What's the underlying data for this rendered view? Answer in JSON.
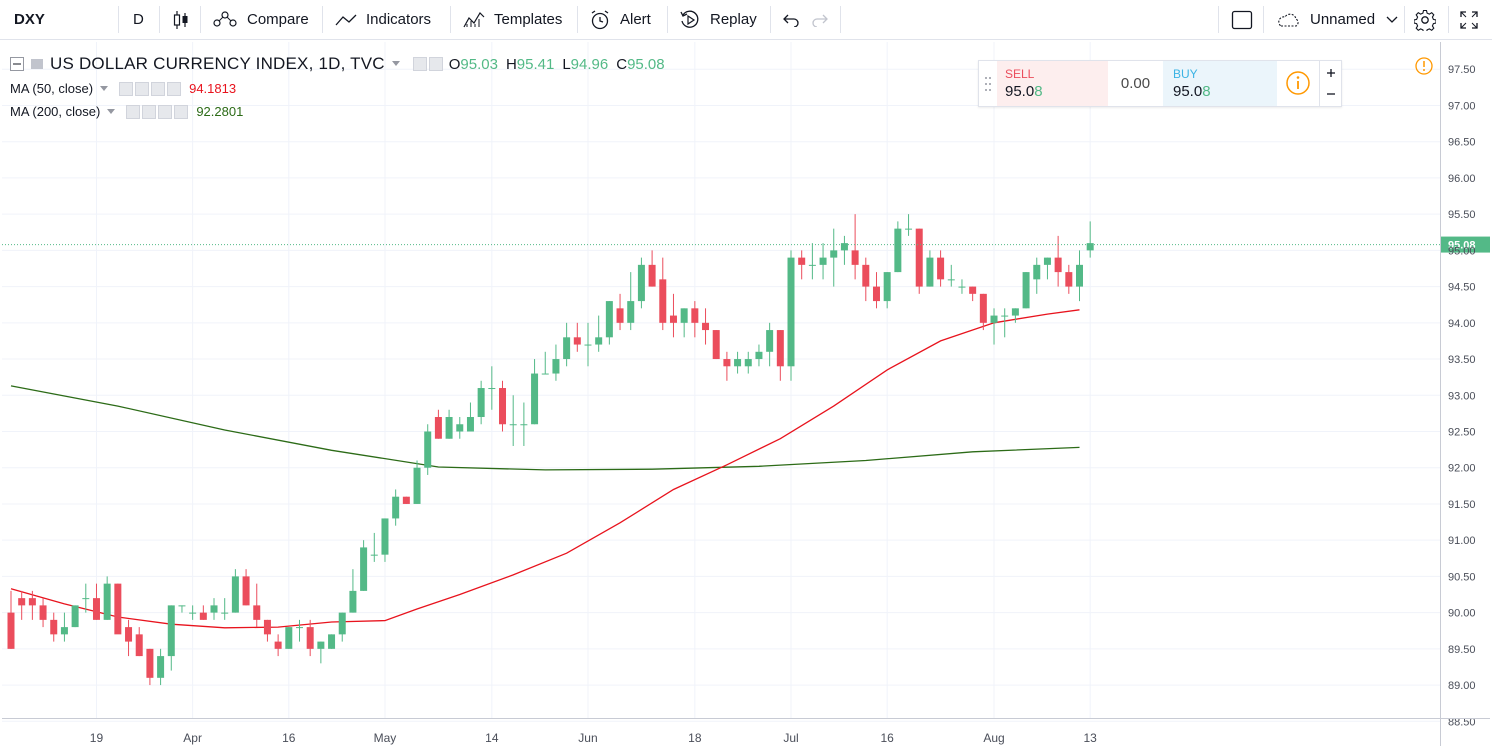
{
  "toolbar": {
    "symbol": "DXY",
    "interval": "D",
    "compare": "Compare",
    "indicators": "Indicators",
    "templates": "Templates",
    "alert": "Alert",
    "replay": "Replay",
    "layout_name": "Unnamed"
  },
  "legend": {
    "title": "US DOLLAR CURRENCY INDEX, 1D, TVC",
    "o_label": "O",
    "o_value": "95.03",
    "h_label": "H",
    "h_value": "95.41",
    "l_label": "L",
    "l_value": "94.96",
    "c_label": "C",
    "c_value": "95.08",
    "ma50_label": "MA (50, close)",
    "ma50_value": "94.1813",
    "ma200_label": "MA (200, close)",
    "ma200_value": "92.2801"
  },
  "trade": {
    "sell_label": "SELL",
    "sell_price_main": "95.0",
    "sell_price_last": "8",
    "spread": "0.00",
    "buy_label": "BUY",
    "buy_price_main": "95.0",
    "buy_price_last": "8"
  },
  "colors": {
    "up": "#53b987",
    "down": "#eb4d5c",
    "ma50": "#e8131d",
    "ma200": "#2c6b17",
    "price_line": "#53b987"
  },
  "chart_data": {
    "type": "candlestick",
    "y_ticks": [
      "97.50",
      "97.00",
      "96.50",
      "96.00",
      "95.50",
      "95.00",
      "94.50",
      "94.00",
      "93.50",
      "93.00",
      "92.50",
      "92.00",
      "91.50",
      "91.00",
      "90.50",
      "90.00",
      "89.50",
      "89.00",
      "88.50"
    ],
    "ylim": [
      88.3,
      97.6
    ],
    "x_ticks": [
      "19",
      "Apr",
      "16",
      "May",
      "14",
      "Jun",
      "18",
      "Jul",
      "16",
      "Aug",
      "13"
    ],
    "x_tick_bars": [
      8,
      17,
      26,
      35,
      45,
      54,
      64,
      73,
      82,
      92,
      101
    ],
    "last_price_label": "95.08",
    "last_price": 95.08,
    "bars": [
      [
        90.0,
        90.3,
        89.5,
        89.5
      ],
      [
        90.2,
        90.3,
        89.9,
        90.1
      ],
      [
        90.2,
        90.3,
        89.9,
        90.1
      ],
      [
        90.1,
        90.2,
        89.8,
        89.9
      ],
      [
        89.9,
        90.0,
        89.6,
        89.7
      ],
      [
        89.7,
        90.0,
        89.6,
        89.8
      ],
      [
        89.8,
        90.1,
        89.8,
        90.1
      ],
      [
        90.2,
        90.4,
        90.0,
        90.2
      ],
      [
        90.2,
        90.4,
        89.9,
        89.9
      ],
      [
        89.9,
        90.5,
        89.9,
        90.4
      ],
      [
        90.4,
        90.4,
        89.8,
        89.7
      ],
      [
        89.8,
        89.9,
        89.4,
        89.6
      ],
      [
        89.7,
        89.8,
        89.4,
        89.4
      ],
      [
        89.5,
        89.5,
        89.0,
        89.1
      ],
      [
        89.1,
        89.5,
        89.0,
        89.4
      ],
      [
        89.4,
        90.1,
        89.2,
        90.1
      ],
      [
        90.1,
        90.1,
        90.0,
        90.1
      ],
      [
        90.0,
        90.1,
        89.9,
        90.0
      ],
      [
        90.0,
        90.1,
        89.9,
        89.9
      ],
      [
        90.0,
        90.2,
        89.9,
        90.1
      ],
      [
        90.0,
        90.2,
        89.9,
        90.0
      ],
      [
        90.0,
        90.6,
        90.0,
        90.5
      ],
      [
        90.5,
        90.6,
        90.1,
        90.1
      ],
      [
        90.1,
        90.4,
        89.8,
        89.9
      ],
      [
        89.9,
        89.9,
        89.6,
        89.7
      ],
      [
        89.6,
        89.7,
        89.4,
        89.5
      ],
      [
        89.5,
        89.8,
        89.5,
        89.8
      ],
      [
        89.8,
        89.9,
        89.6,
        89.8
      ],
      [
        89.8,
        89.9,
        89.4,
        89.5
      ],
      [
        89.5,
        89.6,
        89.3,
        89.6
      ],
      [
        89.5,
        89.7,
        89.5,
        89.7
      ],
      [
        89.7,
        90.0,
        89.6,
        90.0
      ],
      [
        90.0,
        90.6,
        90.0,
        90.3
      ],
      [
        90.3,
        91.0,
        90.3,
        90.9
      ],
      [
        90.8,
        91.1,
        90.7,
        90.8
      ],
      [
        90.8,
        91.3,
        90.7,
        91.3
      ],
      [
        91.3,
        91.7,
        91.2,
        91.6
      ],
      [
        91.6,
        91.6,
        91.5,
        91.5
      ],
      [
        91.5,
        92.1,
        91.5,
        92.0
      ],
      [
        92.0,
        92.6,
        91.9,
        92.5
      ],
      [
        92.7,
        92.8,
        92.4,
        92.4
      ],
      [
        92.4,
        92.8,
        92.4,
        92.7
      ],
      [
        92.5,
        92.7,
        92.4,
        92.6
      ],
      [
        92.5,
        92.9,
        92.5,
        92.7
      ],
      [
        92.7,
        93.2,
        92.6,
        93.1
      ],
      [
        93.1,
        93.4,
        92.8,
        93.1
      ],
      [
        93.1,
        93.2,
        92.5,
        92.6
      ],
      [
        92.6,
        93.0,
        92.3,
        92.6
      ],
      [
        92.6,
        92.9,
        92.3,
        92.6
      ],
      [
        92.6,
        93.5,
        92.6,
        93.3
      ],
      [
        93.3,
        93.6,
        93.3,
        93.3
      ],
      [
        93.3,
        93.7,
        93.2,
        93.5
      ],
      [
        93.5,
        94.0,
        93.4,
        93.8
      ],
      [
        93.8,
        94.0,
        93.6,
        93.7
      ],
      [
        93.7,
        94.0,
        93.4,
        93.7
      ],
      [
        93.7,
        94.1,
        93.6,
        93.8
      ],
      [
        93.8,
        94.3,
        93.7,
        94.3
      ],
      [
        94.2,
        94.4,
        93.9,
        94.0
      ],
      [
        94.0,
        94.7,
        93.9,
        94.3
      ],
      [
        94.3,
        94.9,
        94.2,
        94.8
      ],
      [
        94.8,
        95.0,
        94.5,
        94.5
      ],
      [
        94.6,
        94.9,
        93.9,
        94.0
      ],
      [
        94.1,
        94.4,
        93.8,
        94.0
      ],
      [
        94.0,
        94.2,
        93.8,
        94.2
      ],
      [
        94.2,
        94.3,
        93.8,
        94.0
      ],
      [
        94.0,
        94.2,
        93.7,
        93.9
      ],
      [
        93.9,
        93.9,
        93.5,
        93.5
      ],
      [
        93.5,
        93.6,
        93.2,
        93.4
      ],
      [
        93.4,
        93.6,
        93.3,
        93.5
      ],
      [
        93.4,
        93.6,
        93.3,
        93.5
      ],
      [
        93.5,
        93.7,
        93.4,
        93.6
      ],
      [
        93.6,
        94.0,
        93.4,
        93.9
      ],
      [
        93.9,
        93.9,
        93.2,
        93.4
      ],
      [
        93.4,
        95.0,
        93.2,
        94.9
      ],
      [
        94.9,
        95.0,
        94.6,
        94.8
      ],
      [
        94.8,
        95.1,
        94.6,
        94.8
      ],
      [
        94.8,
        95.1,
        94.6,
        94.9
      ],
      [
        94.9,
        95.3,
        94.5,
        95.0
      ],
      [
        95.0,
        95.2,
        94.8,
        95.1
      ],
      [
        95.0,
        95.5,
        94.6,
        94.8
      ],
      [
        94.8,
        94.9,
        94.3,
        94.5
      ],
      [
        94.5,
        94.7,
        94.2,
        94.3
      ],
      [
        94.3,
        94.7,
        94.2,
        94.7
      ],
      [
        94.7,
        95.4,
        94.7,
        95.3
      ],
      [
        95.3,
        95.5,
        95.2,
        95.3
      ],
      [
        95.3,
        95.3,
        94.4,
        94.5
      ],
      [
        94.5,
        95.0,
        94.5,
        94.9
      ],
      [
        94.9,
        95.0,
        94.5,
        94.6
      ],
      [
        94.6,
        94.8,
        94.5,
        94.6
      ],
      [
        94.5,
        94.6,
        94.4,
        94.5
      ],
      [
        94.5,
        94.5,
        94.3,
        94.4
      ],
      [
        94.4,
        94.4,
        93.9,
        94.0
      ],
      [
        94.0,
        94.2,
        93.7,
        94.1
      ],
      [
        94.1,
        94.2,
        93.8,
        94.1
      ],
      [
        94.1,
        94.2,
        94.0,
        94.2
      ],
      [
        94.2,
        94.7,
        94.2,
        94.7
      ],
      [
        94.6,
        94.9,
        94.4,
        94.8
      ],
      [
        94.8,
        94.9,
        94.6,
        94.9
      ],
      [
        94.9,
        95.2,
        94.5,
        94.7
      ],
      [
        94.7,
        94.8,
        94.4,
        94.5
      ],
      [
        94.5,
        95.0,
        94.3,
        94.8
      ],
      [
        95.0,
        95.4,
        94.9,
        95.1
      ]
    ],
    "ma50": [
      [
        0,
        90.33
      ],
      [
        5,
        90.12
      ],
      [
        10,
        89.94
      ],
      [
        15,
        89.84
      ],
      [
        20,
        89.79
      ],
      [
        25,
        89.8
      ],
      [
        30,
        89.87
      ],
      [
        35,
        89.89
      ],
      [
        38,
        90.05
      ],
      [
        42,
        90.25
      ],
      [
        47,
        90.52
      ],
      [
        52,
        90.82
      ],
      [
        57,
        91.24
      ],
      [
        62,
        91.7
      ],
      [
        67,
        92.04
      ],
      [
        72,
        92.4
      ],
      [
        77,
        92.85
      ],
      [
        82,
        93.35
      ],
      [
        87,
        93.75
      ],
      [
        92,
        94.0
      ],
      [
        97,
        94.12
      ],
      [
        100,
        94.18
      ]
    ],
    "ma200": [
      [
        0,
        93.13
      ],
      [
        10,
        92.85
      ],
      [
        20,
        92.52
      ],
      [
        30,
        92.24
      ],
      [
        40,
        92.01
      ],
      [
        50,
        91.97
      ],
      [
        60,
        91.98
      ],
      [
        70,
        92.02
      ],
      [
        80,
        92.1
      ],
      [
        90,
        92.22
      ],
      [
        100,
        92.28
      ]
    ]
  }
}
